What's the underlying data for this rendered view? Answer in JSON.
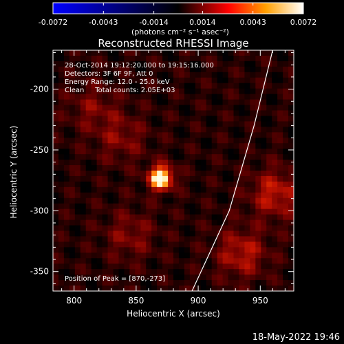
{
  "chart_data": {
    "type": "heatmap",
    "title": "Reconstructed RHESSI Image",
    "xlabel": "Heliocentric X (arcsec)",
    "ylabel": "Heliocentric Y (arcsec)",
    "xlim": [
      783,
      977
    ],
    "ylim": [
      -366,
      -168
    ],
    "x_ticks": [
      800,
      850,
      900,
      950
    ],
    "y_ticks": [
      -350,
      -300,
      -250,
      -200
    ],
    "colorbar": {
      "range": [
        -0.0072,
        0.0072
      ],
      "tick_labels": [
        "-0.0072",
        "-0.0043",
        "-0.0014",
        "0.0014",
        "0.0043",
        "0.0072"
      ],
      "tick_values": [
        -0.0072,
        -0.0043,
        -0.0014,
        0.0014,
        0.0043,
        0.0072
      ],
      "unit_label": "(photons cm⁻² s⁻¹ asec⁻²)"
    },
    "annotations": [
      "28-Oct-2014 19:12:20.000 to 19:15:16.000",
      "Detectors: 3F 6F 9F, Att 0",
      "Energy Range: 12.0 - 25.0 keV",
      "Clean     Total counts: 2.05E+03"
    ],
    "peak_label": "Position of Peak = [870,-273]",
    "peak": {
      "x": 870,
      "y": -273,
      "value": 0.0072
    },
    "sources": [
      {
        "x": 870,
        "y": -273,
        "value": 0.0072
      },
      {
        "x": 962,
        "y": -286,
        "value": 0.003
      },
      {
        "x": 935,
        "y": -335,
        "value": 0.0028
      },
      {
        "x": 838,
        "y": -240,
        "value": 0.0018
      },
      {
        "x": 845,
        "y": -320,
        "value": 0.0018
      },
      {
        "x": 815,
        "y": -215,
        "value": 0.0016
      }
    ],
    "limb_curve": [
      [
        960,
        -168
      ],
      [
        945,
        -230
      ],
      [
        925,
        -300
      ],
      [
        895,
        -366
      ]
    ],
    "grid": false
  },
  "footer": {
    "date_stamp": "18-May-2022 19:46"
  },
  "colors": {
    "background": "#000000",
    "axes": "#ffffff"
  }
}
